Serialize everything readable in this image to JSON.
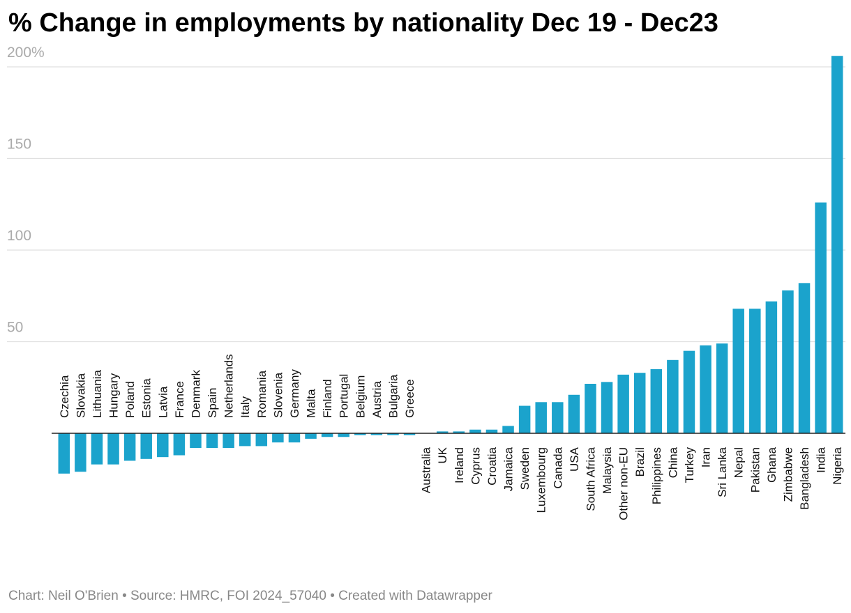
{
  "title": "% Change in employments by nationality Dec 19 - Dec23",
  "footer": "Chart: Neil O'Brien • Source: HMRC, FOI 2024_57040 • Created with Datawrapper",
  "colors": {
    "bar": "#1ba3cc",
    "grid": "#e0e0e0",
    "zero_line": "#222222"
  },
  "chart_data": {
    "type": "bar",
    "title": "% Change in employments by nationality Dec 19 - Dec23",
    "xlabel": "",
    "ylabel": "",
    "ylim": [
      -30,
      205
    ],
    "yticks": [
      {
        "value": 50,
        "label": "50"
      },
      {
        "value": 100,
        "label": "100"
      },
      {
        "value": 150,
        "label": "150"
      },
      {
        "value": 200,
        "label": "200%"
      }
    ],
    "grid": true,
    "categories": [
      "Czechia",
      "Slovakia",
      "Lithuania",
      "Hungary",
      "Poland",
      "Estonia",
      "Latvia",
      "France",
      "Denmark",
      "Spain",
      "Netherlands",
      "Italy",
      "Romania",
      "Slovenia",
      "Germany",
      "Malta",
      "Finland",
      "Portugal",
      "Belgium",
      "Austria",
      "Bulgaria",
      "Greece",
      "Australia",
      "UK",
      "Ireland",
      "Cyprus",
      "Croatia",
      "Jamaica",
      "Sweden",
      "Luxembourg",
      "Canada",
      "USA",
      "South Africa",
      "Malaysia",
      "Other non-EU",
      "Brazil",
      "Philippines",
      "China",
      "Turkey",
      "Iran",
      "Sri Lanka",
      "Nepal",
      "Pakistan",
      "Ghana",
      "Zimbabwe",
      "Bangladesh",
      "India",
      "Nigeria"
    ],
    "values": [
      -22,
      -21,
      -17,
      -17,
      -15,
      -14,
      -13,
      -12,
      -8,
      -8,
      -8,
      -7,
      -7,
      -5,
      -5,
      -3,
      -2,
      -2,
      -1,
      -1,
      -1,
      -1,
      0,
      1,
      1,
      2,
      2,
      4,
      15,
      17,
      17,
      21,
      27,
      28,
      32,
      33,
      35,
      40,
      45,
      48,
      49,
      68,
      68,
      72,
      78,
      82,
      126,
      206
    ]
  }
}
